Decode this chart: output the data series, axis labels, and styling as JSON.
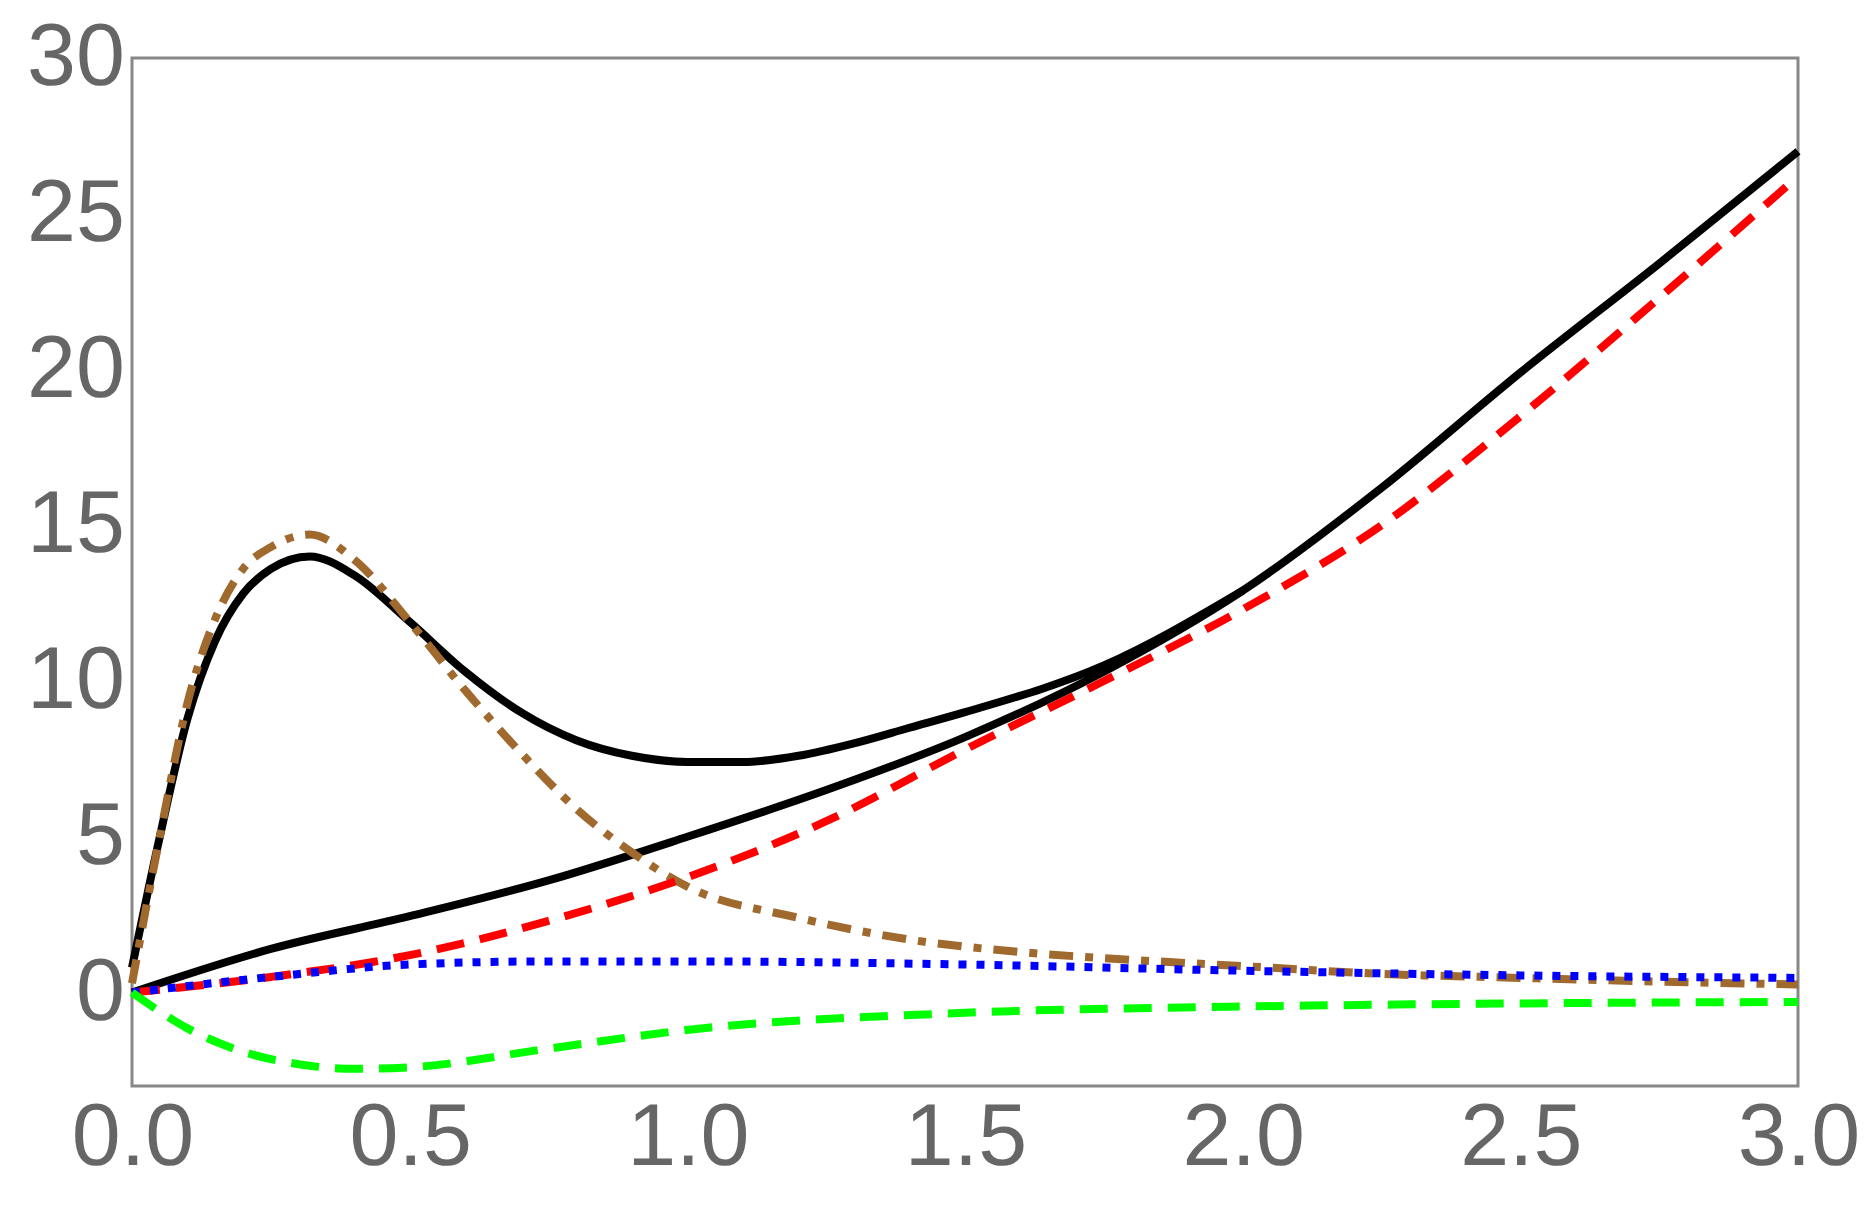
{
  "chart_data": {
    "type": "line",
    "xlim": [
      0,
      3
    ],
    "ylim": [
      -3,
      30
    ],
    "xticks": [
      {
        "value": 0,
        "label": "0.0"
      },
      {
        "value": 0.5,
        "label": "0.5"
      },
      {
        "value": 1,
        "label": "1.0"
      },
      {
        "value": 1.5,
        "label": "1.5"
      },
      {
        "value": 2,
        "label": "2.0"
      },
      {
        "value": 2.5,
        "label": "2.5"
      },
      {
        "value": 3,
        "label": "3.0"
      }
    ],
    "yticks": [
      0,
      5,
      10,
      15,
      20,
      25,
      30
    ],
    "grid": false,
    "series": [
      {
        "color": "#000000",
        "line_style": "solid",
        "x": [
          0,
          0.25,
          0.5,
          0.75,
          1,
          1.25,
          1.5,
          1.75,
          2,
          2.25,
          2.5,
          2.75,
          3
        ],
        "values": [
          0,
          1.4,
          2.45,
          3.6,
          5.0,
          6.5,
          8.2,
          10.3,
          12.9,
          16.2,
          19.9,
          23.4,
          27.0
        ]
      },
      {
        "color": "#000000",
        "line_style": "solid",
        "x": [
          0,
          0.05,
          0.1,
          0.15,
          0.2,
          0.25,
          0.32,
          0.4,
          0.5,
          0.6,
          0.7,
          0.8,
          0.9,
          1,
          1.1,
          1.2,
          1.3,
          1.4,
          1.5,
          1.75,
          2
        ],
        "values": [
          0.8,
          5,
          8.8,
          11.3,
          12.8,
          13.6,
          14.0,
          13.4,
          11.9,
          10.3,
          9.0,
          8.1,
          7.6,
          7.4,
          7.4,
          7.6,
          8.0,
          8.5,
          9.0,
          10.5,
          12.9
        ]
      },
      {
        "color": "#a0692e",
        "line_style": "dashdot",
        "x": [
          0,
          0.05,
          0.1,
          0.15,
          0.2,
          0.25,
          0.32,
          0.4,
          0.5,
          0.6,
          0.7,
          0.8,
          0.9,
          1,
          1.2,
          1.4,
          1.6,
          1.8,
          2,
          2.25,
          2.5,
          2.75,
          3
        ],
        "values": [
          0.3,
          5,
          9.3,
          12,
          13.6,
          14.3,
          14.7,
          13.9,
          11.9,
          9.7,
          7.7,
          5.9,
          4.5,
          3.4,
          2.4,
          1.7,
          1.3,
          1.05,
          0.85,
          0.6,
          0.47,
          0.35,
          0.26
        ]
      },
      {
        "color": "#ff0000",
        "line_style": "dashed",
        "x": [
          0,
          0.25,
          0.5,
          0.75,
          1,
          1.25,
          1.5,
          1.75,
          2,
          2.25,
          2.5,
          2.75,
          3
        ],
        "values": [
          0,
          0.5,
          1.2,
          2.3,
          3.7,
          5.5,
          7.8,
          10.0,
          12.3,
          15.0,
          18.5,
          22.3,
          26.2
        ]
      },
      {
        "color": "#0000ff",
        "line_style": "dotted",
        "x": [
          0,
          0.25,
          0.5,
          0.75,
          1,
          1.5,
          2,
          2.5,
          3
        ],
        "values": [
          0,
          0.5,
          0.9,
          1.0,
          1.0,
          0.9,
          0.7,
          0.55,
          0.47
        ]
      },
      {
        "color": "#00ff00",
        "line_style": "dashed",
        "x": [
          0,
          0.1,
          0.2,
          0.3,
          0.4,
          0.5,
          0.75,
          1,
          1.5,
          2,
          2.5,
          3
        ],
        "values": [
          0,
          -1.15,
          -1.9,
          -2.3,
          -2.45,
          -2.4,
          -1.8,
          -1.2,
          -0.65,
          -0.45,
          -0.35,
          -0.3
        ]
      }
    ]
  }
}
